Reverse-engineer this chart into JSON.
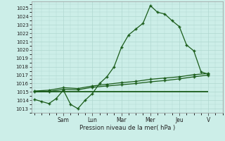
{
  "background_color": "#cceee8",
  "grid_color": "#b0d8d0",
  "line_color": "#1a5c1a",
  "ylabel": "Pression niveau de la mer( hPa )",
  "ylim": [
    1012.5,
    1025.8
  ],
  "yticks": [
    1013,
    1014,
    1015,
    1016,
    1017,
    1018,
    1019,
    1020,
    1021,
    1022,
    1023,
    1024,
    1025
  ],
  "day_labels": [
    "Sam",
    "Lun",
    "Mar",
    "Mer",
    "Jeu",
    "V"
  ],
  "day_positions": [
    2,
    4,
    6,
    8,
    10,
    12
  ],
  "series1_x": [
    0,
    0.5,
    1,
    1.5,
    2,
    2.5,
    3,
    3.5,
    4,
    4.5,
    5,
    5.5,
    6,
    6.5,
    7,
    7.5,
    8,
    8.5,
    9,
    9.5,
    10,
    10.5,
    11,
    11.5,
    12
  ],
  "series1_y": [
    1014.1,
    1013.85,
    1013.6,
    1014.2,
    1015.2,
    1013.5,
    1013.0,
    1014.0,
    1014.8,
    1016.0,
    1016.8,
    1018.0,
    1020.3,
    1021.8,
    1022.5,
    1023.2,
    1025.3,
    1024.5,
    1024.3,
    1023.5,
    1022.8,
    1020.6,
    1019.9,
    1017.4,
    1017.1
  ],
  "series2_x": [
    0,
    1,
    2,
    3,
    4,
    5,
    6,
    7,
    8,
    9,
    10,
    11,
    12
  ],
  "series2_y": [
    1015.1,
    1015.2,
    1015.5,
    1015.4,
    1015.7,
    1015.9,
    1016.1,
    1016.25,
    1016.5,
    1016.65,
    1016.8,
    1017.05,
    1017.2
  ],
  "series3_x": [
    0,
    1,
    2,
    3,
    4,
    5,
    6,
    7,
    8,
    9,
    10,
    11,
    12
  ],
  "series3_y": [
    1015.0,
    1015.05,
    1015.3,
    1015.25,
    1015.55,
    1015.7,
    1015.85,
    1016.0,
    1016.2,
    1016.35,
    1016.55,
    1016.8,
    1017.0
  ],
  "series4_x": [
    0,
    12
  ],
  "series4_y": [
    1015.05,
    1015.05
  ],
  "xlim": [
    -0.2,
    12.5
  ],
  "figsize": [
    3.2,
    2.0
  ],
  "dpi": 100
}
